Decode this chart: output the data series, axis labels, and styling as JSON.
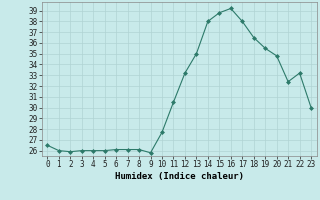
{
  "x": [
    0,
    1,
    2,
    3,
    4,
    5,
    6,
    7,
    8,
    9,
    10,
    11,
    12,
    13,
    14,
    15,
    16,
    17,
    18,
    19,
    20,
    21,
    22,
    23
  ],
  "y": [
    26.5,
    26.0,
    25.9,
    26.0,
    26.0,
    26.0,
    26.1,
    26.1,
    26.1,
    25.8,
    27.7,
    30.5,
    33.2,
    35.0,
    38.0,
    38.8,
    39.2,
    38.0,
    36.5,
    35.5,
    34.8,
    32.4,
    33.2,
    30.0
  ],
  "line_color": "#2d7a6a",
  "marker": "D",
  "marker_size": 2.0,
  "bg_color": "#c8eaea",
  "grid_color": "#b0d4d4",
  "xlabel": "Humidex (Indice chaleur)",
  "ylabel_ticks": [
    26,
    27,
    28,
    29,
    30,
    31,
    32,
    33,
    34,
    35,
    36,
    37,
    38,
    39
  ],
  "xlim": [
    -0.5,
    23.5
  ],
  "ylim": [
    25.5,
    39.8
  ],
  "tick_fontsize": 5.5,
  "xlabel_fontsize": 6.5
}
